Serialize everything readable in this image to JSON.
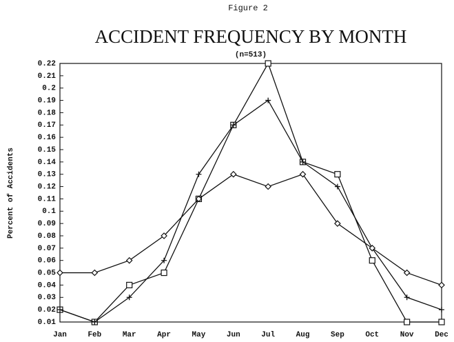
{
  "chart_data": {
    "type": "line",
    "figure_label": "Figure 2",
    "title": "ACCIDENT FREQUENCY BY MONTH",
    "subtitle": "(n=513)",
    "y_label": "Percent of Accidents",
    "categories": [
      "Jan",
      "Feb",
      "Mar",
      "Apr",
      "May",
      "Jun",
      "Jul",
      "Aug",
      "Sep",
      "Oct",
      "Nov",
      "Dec"
    ],
    "series": [
      {
        "marker": "square",
        "color": "#111111",
        "values": [
          0.02,
          0.01,
          0.04,
          0.05,
          0.11,
          0.17,
          0.22,
          0.14,
          0.13,
          0.06,
          0.01,
          0.01
        ]
      },
      {
        "marker": "plus",
        "color": "#111111",
        "values": [
          0.02,
          0.01,
          0.03,
          0.06,
          0.13,
          0.17,
          0.19,
          0.14,
          0.12,
          0.07,
          0.03,
          0.02
        ]
      },
      {
        "marker": "diamond",
        "color": "#111111",
        "values": [
          0.05,
          0.05,
          0.06,
          0.08,
          0.11,
          0.13,
          0.12,
          0.13,
          0.09,
          0.07,
          0.05,
          0.04
        ]
      }
    ],
    "ylim": [
      0.01,
      0.22
    ],
    "yticks": [
      0.01,
      0.02,
      0.03,
      0.04,
      0.05,
      0.06,
      0.07,
      0.08,
      0.09,
      0.1,
      0.11,
      0.12,
      0.13,
      0.14,
      0.15,
      0.16,
      0.17,
      0.18,
      0.19,
      0.2,
      0.21,
      0.22
    ],
    "grid": false
  }
}
